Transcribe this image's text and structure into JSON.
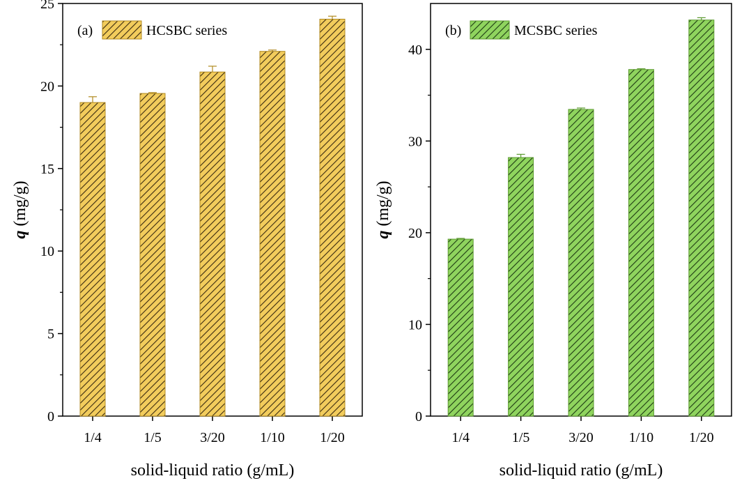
{
  "chart_data": [
    {
      "type": "bar",
      "panel_label": "(a)",
      "legend": {
        "label": "HCSBC series",
        "placement": "top-left"
      },
      "categories": [
        "1/4",
        "1/5",
        "3/20",
        "1/10",
        "1/20"
      ],
      "values": [
        19.0,
        19.55,
        20.85,
        22.1,
        24.05
      ],
      "errors": [
        0.35,
        0.05,
        0.35,
        0.08,
        0.18
      ],
      "xlabel": "solid-liquid ratio (g/mL)",
      "ylabel_symbol": "q",
      "ylabel_unit": "(mg/g)",
      "ylim": [
        0,
        25
      ],
      "yticks": [
        0,
        5,
        10,
        15,
        20,
        25
      ],
      "bar_color": "#f2cc5c",
      "hatch_color": "#3a2a10"
    },
    {
      "type": "bar",
      "panel_label": "(b)",
      "legend": {
        "label": "MCSBC series",
        "placement": "top-left"
      },
      "categories": [
        "1/4",
        "1/5",
        "3/20",
        "1/10",
        "1/20"
      ],
      "values": [
        19.3,
        28.2,
        33.45,
        37.8,
        43.2
      ],
      "errors": [
        0.08,
        0.35,
        0.15,
        0.08,
        0.25
      ],
      "xlabel": "solid-liquid ratio (g/mL)",
      "ylabel_symbol": "q",
      "ylabel_unit": "(mg/g)",
      "ylim": [
        0,
        45
      ],
      "yticks": [
        0,
        10,
        20,
        30,
        40
      ],
      "bar_color": "#8fd45e",
      "hatch_color": "#1e3a14"
    }
  ]
}
